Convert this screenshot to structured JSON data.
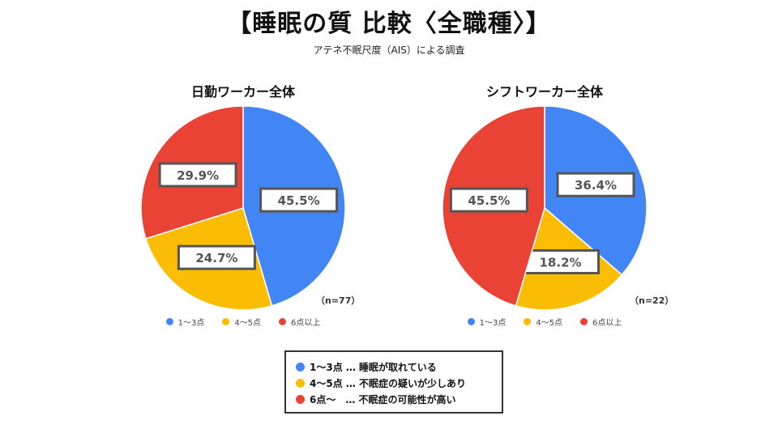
{
  "title": "【睡眠の質 比較〈全職種〉】",
  "subtitle": "アテネ不眠尺度（AIS）による調査",
  "colors": {
    "blue": "#4285F4",
    "yellow": "#FBBC04",
    "red": "#EA4335"
  },
  "chart_data": [
    {
      "type": "pie",
      "title": "日勤ワーカー全体",
      "n_label": "（n=77）",
      "categories": [
        "1〜3点",
        "4〜5点",
        "6点以上"
      ],
      "values": [
        45.5,
        24.7,
        29.9
      ],
      "value_labels": [
        "45.5%",
        "24.7%",
        "29.9%"
      ],
      "legend": "bottom"
    },
    {
      "type": "pie",
      "title": "シフトワーカー全体",
      "n_label": "（n=22）",
      "categories": [
        "1〜3点",
        "4〜5点",
        "6点以上"
      ],
      "values": [
        36.4,
        18.2,
        45.5
      ],
      "value_labels": [
        "36.4%",
        "18.2%",
        "45.5%"
      ],
      "legend": "bottom"
    }
  ],
  "key": [
    {
      "label": "1〜3点 … 睡眠が取れている",
      "color": "blue"
    },
    {
      "label": "4〜5点 … 不眠症の疑いが少しあり",
      "color": "yellow"
    },
    {
      "label": "6点〜　… 不眠症の可能性が高い",
      "color": "red"
    }
  ]
}
